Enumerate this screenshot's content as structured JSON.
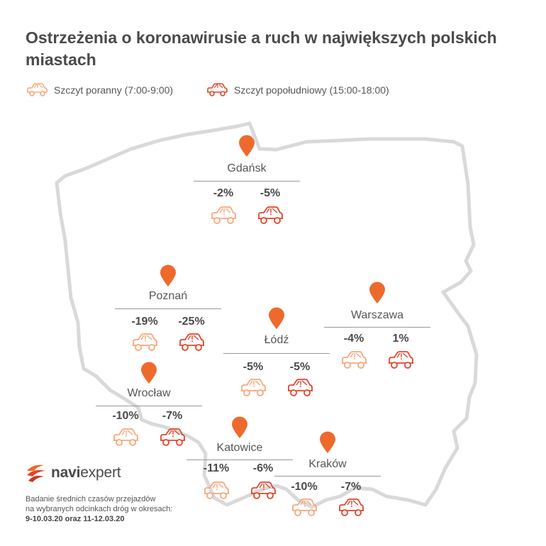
{
  "title": "Ostrzeżenia o koronawirusie a ruch w największych polskich miastach",
  "legend": {
    "morning": "Szczyt poranny (7:00-9:00)",
    "afternoon": "Szczyt popołudniowy (15:00-18:00)"
  },
  "colors": {
    "morning": "#f7a77a",
    "afternoon": "#e2452c",
    "pin": "#ee6a2c",
    "map_outline": "#d8d8d8"
  },
  "cities": [
    {
      "name": "Gdańsk",
      "morning": "-2%",
      "afternoon": "-5%"
    },
    {
      "name": "Poznań",
      "morning": "-19%",
      "afternoon": "-25%"
    },
    {
      "name": "Łódź",
      "morning": "-5%",
      "afternoon": "-5%"
    },
    {
      "name": "Warszawa",
      "morning": "-4%",
      "afternoon": "1%"
    },
    {
      "name": "Wrocław",
      "morning": "-10%",
      "afternoon": "-7%"
    },
    {
      "name": "Katowice",
      "morning": "-11%",
      "afternoon": "-6%"
    },
    {
      "name": "Kraków",
      "morning": "-10%",
      "afternoon": "-7%"
    }
  ],
  "logo": {
    "part1": "navi",
    "part2": "expert"
  },
  "note": {
    "line1": "Badanie średnich czasów przejazdów",
    "line2": "na wybranych odcinkach dróg w okresach:",
    "dates": "9-10.03.20  oraz  11-12.03.20"
  }
}
